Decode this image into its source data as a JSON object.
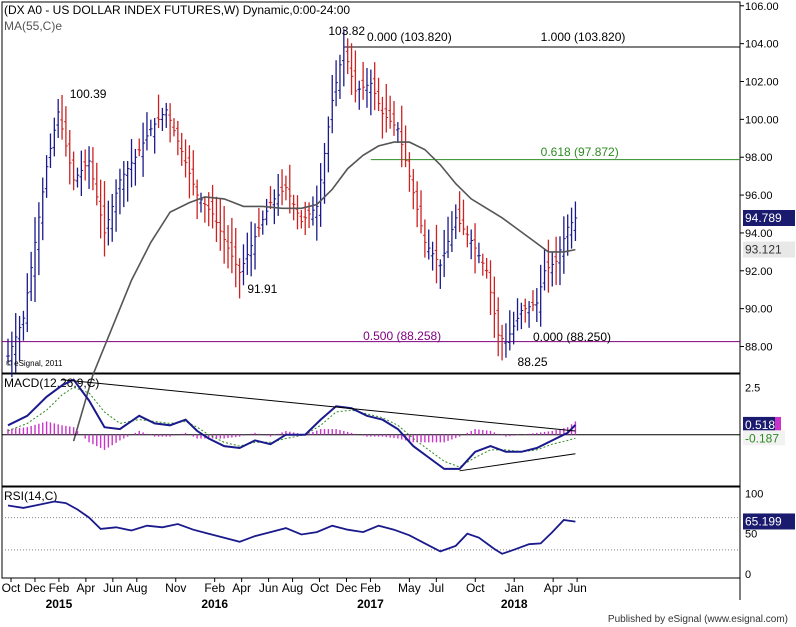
{
  "chart_data": [
    {
      "type": "ohlc",
      "title": "(DX A0 - US DOLLAR INDEX FUTURES,W) Dynamic,0:00-24:00",
      "ma_label": "MA(55,C)e",
      "watermark": "© eSignal, 2011",
      "yaxis": {
        "ticks": [
          88,
          90,
          92,
          94,
          96,
          98,
          100,
          102,
          104,
          106
        ],
        "labels": [
          "88.00",
          "90.00",
          "92.00",
          "94.00",
          "96.00",
          "98.00",
          "100.00",
          "102.00",
          "104.00",
          "106.00"
        ],
        "range": [
          86.6,
          106.2
        ]
      },
      "last_price": "94.789",
      "ma_value": "93.121",
      "price_path": [
        [
          0,
          87.5
        ],
        [
          4,
          89.5
        ],
        [
          7,
          93.5
        ],
        [
          10,
          97.5
        ],
        [
          13,
          100.39
        ],
        [
          17,
          96.8
        ],
        [
          21,
          97.8
        ],
        [
          25,
          94.0
        ],
        [
          29,
          96.8
        ],
        [
          33,
          98.0
        ],
        [
          37,
          99.5
        ],
        [
          41,
          100.5
        ],
        [
          45,
          98.3
        ],
        [
          49,
          96.0
        ],
        [
          53,
          95.0
        ],
        [
          57,
          93.2
        ],
        [
          60,
          91.91
        ],
        [
          64,
          93.8
        ],
        [
          68,
          95.6
        ],
        [
          72,
          96.4
        ],
        [
          76,
          94.6
        ],
        [
          80,
          95.4
        ],
        [
          84,
          101.0
        ],
        [
          87,
          103.82
        ],
        [
          90,
          101.5
        ],
        [
          94,
          101.9
        ],
        [
          97,
          100.3
        ],
        [
          101,
          99.5
        ],
        [
          104,
          97.0
        ],
        [
          108,
          93.5
        ],
        [
          112,
          92.3
        ],
        [
          116,
          94.8
        ],
        [
          120,
          93.6
        ],
        [
          124,
          92.0
        ],
        [
          127,
          88.6
        ],
        [
          129,
          88.25
        ],
        [
          133,
          89.9
        ],
        [
          137,
          90.3
        ],
        [
          139,
          92.0
        ],
        [
          142,
          92.5
        ],
        [
          145,
          94.3
        ],
        [
          147,
          94.789
        ]
      ],
      "ma_path": [
        [
          17,
          83.0
        ],
        [
          22,
          86.5
        ],
        [
          27,
          89.0
        ],
        [
          32,
          91.5
        ],
        [
          37,
          93.5
        ],
        [
          42,
          95.1
        ],
        [
          47,
          95.6
        ],
        [
          51,
          95.9
        ],
        [
          56,
          95.8
        ],
        [
          61,
          95.4
        ],
        [
          66,
          95.4
        ],
        [
          71,
          95.3
        ],
        [
          76,
          95.3
        ],
        [
          80,
          95.5
        ],
        [
          84,
          96.3
        ],
        [
          88,
          97.4
        ],
        [
          92,
          98.1
        ],
        [
          96,
          98.6
        ],
        [
          100,
          98.8
        ],
        [
          104,
          98.8
        ],
        [
          108,
          98.4
        ],
        [
          112,
          97.6
        ],
        [
          116,
          96.6
        ],
        [
          120,
          95.8
        ],
        [
          124,
          95.3
        ],
        [
          128,
          94.8
        ],
        [
          132,
          94.2
        ],
        [
          136,
          93.6
        ],
        [
          140,
          93.0
        ],
        [
          144,
          93.0
        ],
        [
          147,
          93.121
        ]
      ],
      "annotations": {
        "high_label": "103.82",
        "low_label": "88.25",
        "peak_2015": "100.39",
        "trough_2016": "91.91",
        "fib_0": "0.000 (103.820)",
        "fib_1": "1.000 (103.820)",
        "fib_618": "0.618 (97.872)",
        "fib_500": "0.500 (88.258)",
        "fib_0_low": "0.000 (88.250)"
      },
      "levels": {
        "fib_high": 103.82,
        "fib_618": 97.872,
        "fib_500": 88.258
      },
      "colors": {
        "up": "#1a1a8c",
        "down": "#cc2222",
        "ma": "#555555",
        "fib_high": "#000000",
        "fib_618": "#2e8b22",
        "fib_500": "#800080"
      }
    },
    {
      "type": "macd",
      "label": "MACD(12,26,9,C)",
      "yaxis": {
        "ticks": [
          2.5
        ],
        "labels": [
          "2.5"
        ],
        "range": [
          -2.7,
          3.2
        ]
      },
      "macd_value": "0.518",
      "signal_value": "-0.187",
      "macd_path": [
        [
          0,
          0.5
        ],
        [
          5,
          1.0
        ],
        [
          10,
          2.0
        ],
        [
          14,
          2.6
        ],
        [
          17,
          2.9
        ],
        [
          21,
          1.8
        ],
        [
          25,
          0.4
        ],
        [
          29,
          0.3
        ],
        [
          34,
          1.0
        ],
        [
          38,
          0.6
        ],
        [
          42,
          0.5
        ],
        [
          46,
          0.8
        ],
        [
          49,
          0.2
        ],
        [
          52,
          -0.2
        ],
        [
          56,
          -0.6
        ],
        [
          60,
          -0.7
        ],
        [
          64,
          -0.3
        ],
        [
          68,
          -0.5
        ],
        [
          72,
          0.0
        ],
        [
          77,
          0.0
        ],
        [
          81,
          0.8
        ],
        [
          85,
          1.5
        ],
        [
          89,
          1.4
        ],
        [
          93,
          1.0
        ],
        [
          97,
          0.8
        ],
        [
          101,
          0.3
        ],
        [
          105,
          -0.6
        ],
        [
          109,
          -1.2
        ],
        [
          113,
          -1.8
        ],
        [
          117,
          -1.8
        ],
        [
          121,
          -0.9
        ],
        [
          125,
          -0.6
        ],
        [
          129,
          -0.9
        ],
        [
          133,
          -0.9
        ],
        [
          137,
          -0.7
        ],
        [
          141,
          -0.3
        ],
        [
          145,
          0.1
        ],
        [
          147,
          0.518
        ]
      ],
      "signal_path": [
        [
          0,
          0.2
        ],
        [
          5,
          0.6
        ],
        [
          10,
          1.3
        ],
        [
          14,
          2.1
        ],
        [
          17,
          2.5
        ],
        [
          21,
          2.2
        ],
        [
          25,
          1.2
        ],
        [
          29,
          0.6
        ],
        [
          34,
          0.8
        ],
        [
          38,
          0.7
        ],
        [
          42,
          0.6
        ],
        [
          46,
          0.7
        ],
        [
          49,
          0.4
        ],
        [
          52,
          0.0
        ],
        [
          56,
          -0.4
        ],
        [
          60,
          -0.6
        ],
        [
          64,
          -0.4
        ],
        [
          68,
          -0.4
        ],
        [
          72,
          -0.2
        ],
        [
          77,
          0.0
        ],
        [
          81,
          0.5
        ],
        [
          85,
          1.2
        ],
        [
          89,
          1.3
        ],
        [
          93,
          1.1
        ],
        [
          97,
          0.9
        ],
        [
          101,
          0.5
        ],
        [
          105,
          -0.2
        ],
        [
          109,
          -0.8
        ],
        [
          113,
          -1.4
        ],
        [
          117,
          -1.7
        ],
        [
          121,
          -1.2
        ],
        [
          125,
          -0.8
        ],
        [
          129,
          -0.8
        ],
        [
          133,
          -0.9
        ],
        [
          137,
          -0.8
        ],
        [
          141,
          -0.5
        ],
        [
          145,
          -0.3
        ],
        [
          147,
          -0.187
        ]
      ],
      "trendlines": [
        {
          "from": [
            14,
            2.9
          ],
          "to": [
            147,
            0.2
          ]
        },
        {
          "from": [
            117,
            -1.9
          ],
          "to": [
            147,
            -1.0
          ]
        }
      ],
      "colors": {
        "macd": "#1a1a8c",
        "signal": "#2e8b22",
        "histogram": "#cc33cc",
        "zero": "#000000"
      }
    },
    {
      "type": "rsi",
      "label": "RSI(14,C)",
      "yaxis": {
        "ticks": [
          100,
          50,
          0
        ],
        "labels": [
          "100",
          "50",
          "0"
        ],
        "range": [
          -5,
          108
        ]
      },
      "rsi_value": "65.199",
      "overbought": 70,
      "oversold": 30,
      "rsi_path": [
        [
          0,
          85
        ],
        [
          4,
          82
        ],
        [
          8,
          86
        ],
        [
          12,
          90
        ],
        [
          15,
          88
        ],
        [
          18,
          80
        ],
        [
          21,
          70
        ],
        [
          24,
          56
        ],
        [
          28,
          58
        ],
        [
          32,
          54
        ],
        [
          36,
          60
        ],
        [
          40,
          58
        ],
        [
          44,
          62
        ],
        [
          48,
          55
        ],
        [
          52,
          50
        ],
        [
          56,
          45
        ],
        [
          60,
          40
        ],
        [
          64,
          47
        ],
        [
          68,
          52
        ],
        [
          72,
          57
        ],
        [
          76,
          49
        ],
        [
          80,
          52
        ],
        [
          84,
          60
        ],
        [
          88,
          55
        ],
        [
          92,
          52
        ],
        [
          96,
          60
        ],
        [
          100,
          55
        ],
        [
          104,
          48
        ],
        [
          108,
          38
        ],
        [
          112,
          28
        ],
        [
          116,
          35
        ],
        [
          119,
          50
        ],
        [
          122,
          45
        ],
        [
          126,
          31
        ],
        [
          128,
          25
        ],
        [
          131,
          30
        ],
        [
          135,
          37
        ],
        [
          138,
          38
        ],
        [
          141,
          52
        ],
        [
          144,
          67
        ],
        [
          147,
          65
        ]
      ],
      "colors": {
        "rsi": "#1a1a8c",
        "ob": "#888888"
      }
    }
  ],
  "xaxis": {
    "months": [
      "Oct",
      "Dec",
      "Feb",
      "Apr",
      "Jun",
      "Aug",
      "Nov",
      "Feb",
      "Apr",
      "Jun",
      "Aug",
      "Oct",
      "Dec",
      "Feb",
      "May",
      "Jul",
      "Oct",
      "Jan",
      "Apr",
      "Jun"
    ],
    "month_weeks": [
      1,
      9,
      17,
      26,
      35,
      43,
      56,
      69,
      78,
      87,
      95,
      104,
      113,
      121,
      134,
      143,
      156,
      169,
      182,
      190
    ],
    "years": [
      "2015",
      "2016",
      "2017",
      "2018"
    ],
    "year_weeks": [
      17,
      69,
      121,
      169
    ]
  },
  "footer": "Published by eSignal (www.esignal.com)"
}
